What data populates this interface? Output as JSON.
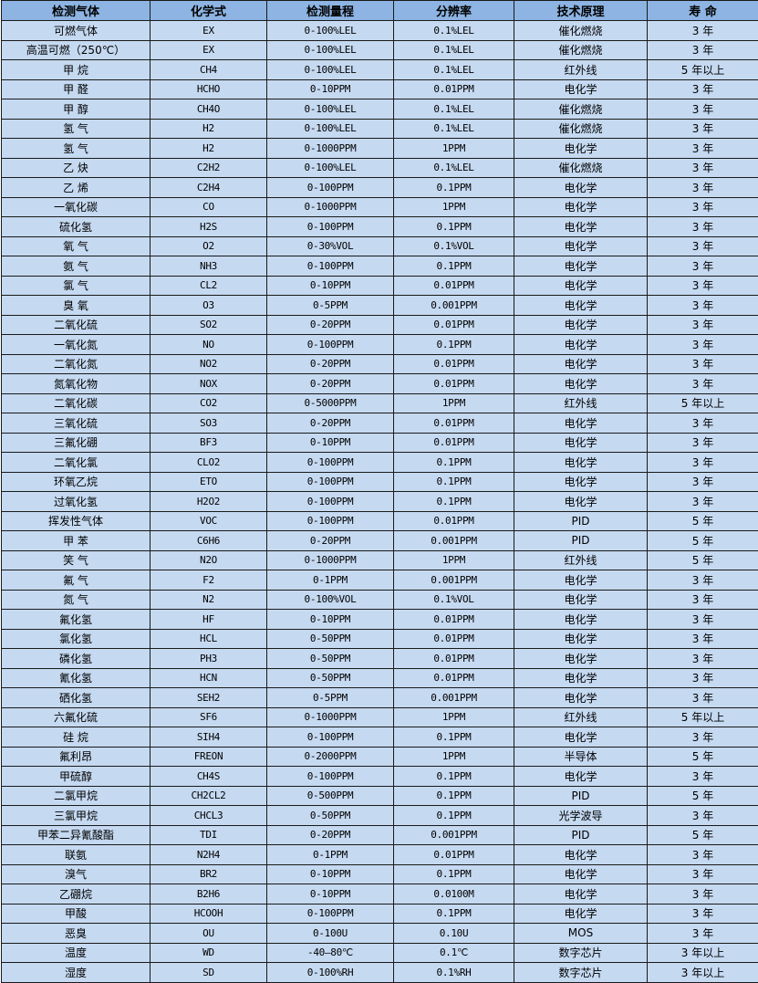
{
  "table": {
    "headers": [
      "检测气体",
      "化学式",
      "检测量程",
      "分辨率",
      "技术原理",
      "寿 命"
    ],
    "rows": [
      [
        "可燃气体",
        "EX",
        "0-100%LEL",
        "0.1%LEL",
        "催化燃烧",
        "3 年"
      ],
      [
        "高温可燃（250℃）",
        "EX",
        "0-100%LEL",
        "0.1%LEL",
        "催化燃烧",
        "3 年"
      ],
      [
        "甲 烷",
        "CH4",
        "0-100%LEL",
        "0.1%LEL",
        "红外线",
        "5 年以上"
      ],
      [
        "甲 醛",
        "HCHO",
        "0-10PPM",
        "0.01PPM",
        "电化学",
        "3 年"
      ],
      [
        "甲 醇",
        "CH4O",
        "0-100%LEL",
        "0.1%LEL",
        "催化燃烧",
        "3 年"
      ],
      [
        "氢 气",
        "H2",
        "0-100%LEL",
        "0.1%LEL",
        "催化燃烧",
        "3 年"
      ],
      [
        "氢 气",
        "H2",
        "0-1000PPM",
        "1PPM",
        "电化学",
        "3 年"
      ],
      [
        "乙 炔",
        "C2H2",
        "0-100%LEL",
        "0.1%LEL",
        "催化燃烧",
        "3 年"
      ],
      [
        "乙 烯",
        "C2H4",
        "0-100PPM",
        "0.1PPM",
        "电化学",
        "3 年"
      ],
      [
        "一氧化碳",
        "CO",
        "0-1000PPM",
        "1PPM",
        "电化学",
        "3 年"
      ],
      [
        "硫化氢",
        "H2S",
        "0-100PPM",
        "0.1PPM",
        "电化学",
        "3 年"
      ],
      [
        "氧 气",
        "O2",
        "0-30%VOL",
        "0.1%VOL",
        "电化学",
        "3 年"
      ],
      [
        "氨 气",
        "NH3",
        "0-100PPM",
        "0.1PPM",
        "电化学",
        "3 年"
      ],
      [
        "氯 气",
        "CL2",
        "0-10PPM",
        "0.01PPM",
        "电化学",
        "3 年"
      ],
      [
        "臭 氧",
        "O3",
        "0-5PPM",
        "0.001PPM",
        "电化学",
        "3 年"
      ],
      [
        "二氧化硫",
        "SO2",
        "0-20PPM",
        "0.01PPM",
        "电化学",
        "3 年"
      ],
      [
        "一氧化氮",
        "NO",
        "0-100PPM",
        "0.1PPM",
        "电化学",
        "3 年"
      ],
      [
        "二氧化氮",
        "NO2",
        "0-20PPM",
        "0.01PPM",
        "电化学",
        "3 年"
      ],
      [
        "氮氧化物",
        "NOX",
        "0-20PPM",
        "0.01PPM",
        "电化学",
        "3 年"
      ],
      [
        "二氧化碳",
        "CO2",
        "0-5000PPM",
        "1PPM",
        "红外线",
        "5 年以上"
      ],
      [
        "三氧化硫",
        "SO3",
        "0-20PPM",
        "0.01PPM",
        "电化学",
        "3 年"
      ],
      [
        "三氟化硼",
        "BF3",
        "0-10PPM",
        "0.01PPM",
        "电化学",
        "3 年"
      ],
      [
        "二氧化氯",
        "CLO2",
        "0-100PPM",
        "0.1PPM",
        "电化学",
        "3 年"
      ],
      [
        "环氧乙烷",
        "ETO",
        "0-100PPM",
        "0.1PPM",
        "电化学",
        "3 年"
      ],
      [
        "过氧化氢",
        "H2O2",
        "0-100PPM",
        "0.1PPM",
        "电化学",
        "3 年"
      ],
      [
        "挥发性气体",
        "VOC",
        "0-100PPM",
        "0.01PPM",
        "PID",
        "5 年"
      ],
      [
        "甲 苯",
        "C6H6",
        "0-20PPM",
        "0.001PPM",
        "PID",
        "5 年"
      ],
      [
        "笑 气",
        "N2O",
        "0-1000PPM",
        "1PPM",
        "红外线",
        "5 年"
      ],
      [
        "氟 气",
        "F2",
        "0-1PPM",
        "0.001PPM",
        "电化学",
        "3 年"
      ],
      [
        "氮 气",
        "N2",
        "0-100%VOL",
        "0.1%VOL",
        "电化学",
        "3 年"
      ],
      [
        "氟化氢",
        "HF",
        "0-10PPM",
        "0.01PPM",
        "电化学",
        "3 年"
      ],
      [
        "氯化氢",
        "HCL",
        "0-50PPM",
        "0.01PPM",
        "电化学",
        "3 年"
      ],
      [
        "磷化氢",
        "PH3",
        "0-50PPM",
        "0.01PPM",
        "电化学",
        "3 年"
      ],
      [
        "氰化氢",
        "HCN",
        "0-50PPM",
        "0.01PPM",
        "电化学",
        "3 年"
      ],
      [
        "硒化氢",
        "SEH2",
        "0-5PPM",
        "0.001PPM",
        "电化学",
        "3 年"
      ],
      [
        "六氟化硫",
        "SF6",
        "0-1000PPM",
        "1PPM",
        "红外线",
        "5 年以上"
      ],
      [
        "硅 烷",
        "SIH4",
        "0-100PPM",
        "0.1PPM",
        "电化学",
        "3 年"
      ],
      [
        "氟利昂",
        "FREON",
        "0-2000PPM",
        "1PPM",
        "半导体",
        "5 年"
      ],
      [
        "甲硫醇",
        "CH4S",
        "0-100PPM",
        "0.1PPM",
        "电化学",
        "3 年"
      ],
      [
        "二氯甲烷",
        "CH2CL2",
        "0-500PPM",
        "0.1PPM",
        "PID",
        "5 年"
      ],
      [
        "三氯甲烷",
        "CHCL3",
        "0-50PPM",
        "0.1PPM",
        "光学波导",
        "3 年"
      ],
      [
        "甲苯二异氰酸酯",
        "TDI",
        "0-20PPM",
        "0.001PPM",
        "PID",
        "5 年"
      ],
      [
        "联氨",
        "N2H4",
        "0-1PPM",
        "0.01PPM",
        "电化学",
        "3 年"
      ],
      [
        "溴气",
        "BR2",
        "0-10PPM",
        "0.1PPM",
        "电化学",
        "3 年"
      ],
      [
        "乙硼烷",
        "B2H6",
        "0-10PPM",
        "0.0100M",
        "电化学",
        "3 年"
      ],
      [
        "甲酸",
        "HCOOH",
        "0-100PPM",
        "0.1PPM",
        "电化学",
        "3 年"
      ],
      [
        "恶臭",
        "OU",
        "0-100U",
        "0.10U",
        "MOS",
        "3 年"
      ],
      [
        "温度",
        "WD",
        "-40—80℃",
        "0.1℃",
        "数字芯片",
        "3 年以上"
      ],
      [
        "湿度",
        "SD",
        "0-100%RH",
        "0.1%RH",
        "数字芯片",
        "3 年以上"
      ]
    ]
  },
  "colors": {
    "header_bg": "#8db4e2",
    "cell_bg": "#c5d9f1",
    "border": "#1a1a1a"
  }
}
